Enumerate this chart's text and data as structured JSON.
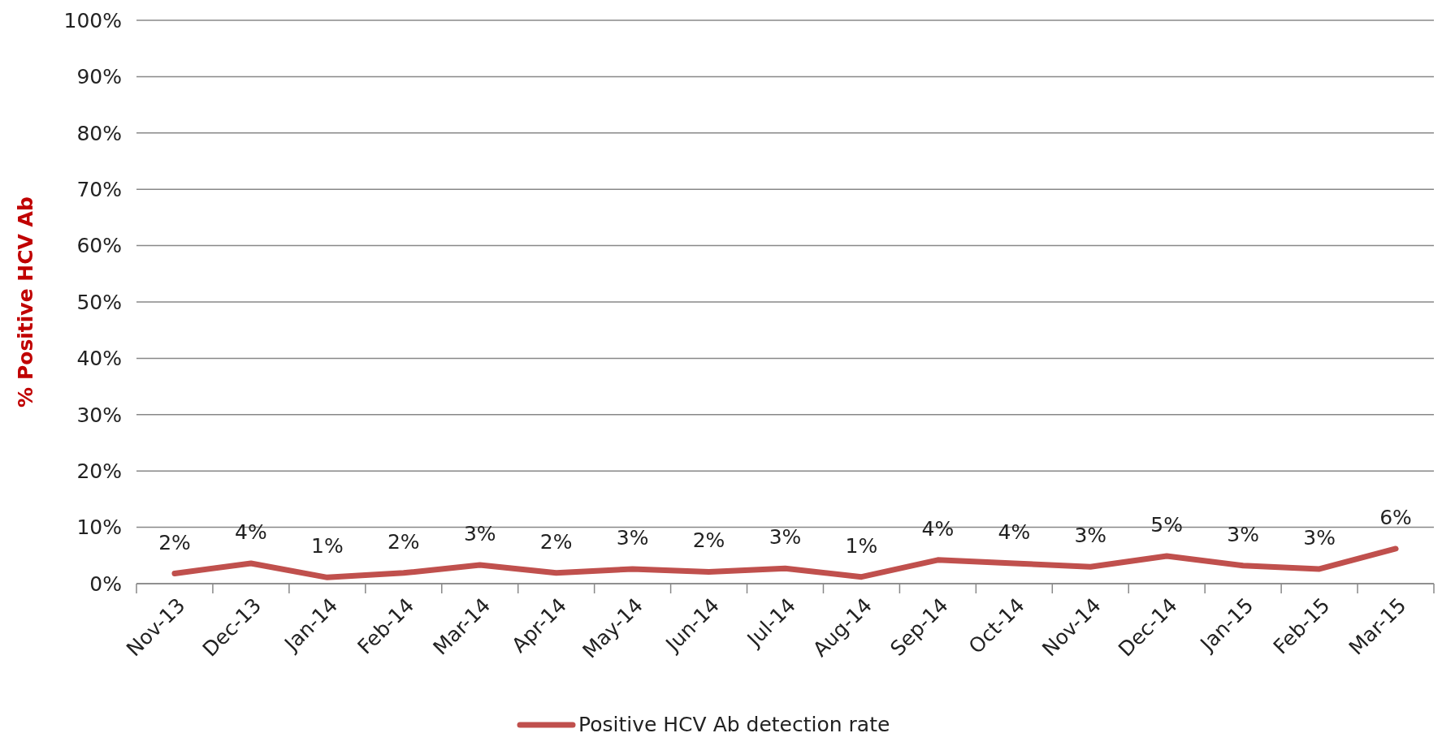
{
  "chart_data": {
    "type": "line",
    "ylabel": "% Positive HCV Ab",
    "categories": [
      "Nov-13",
      "Dec-13",
      "Jan-14",
      "Feb-14",
      "Mar-14",
      "Apr-14",
      "May-14",
      "Jun-14",
      "Jul-14",
      "Aug-14",
      "Sep-14",
      "Oct-14",
      "Nov-14",
      "Dec-14",
      "Jan-15",
      "Feb-15",
      "Mar-15"
    ],
    "series": [
      {
        "name": "Positive HCV Ab detection rate",
        "color": "#c0504d",
        "values": [
          1.8,
          3.6,
          1.1,
          1.9,
          3.3,
          1.9,
          2.6,
          2.1,
          2.7,
          1.2,
          4.2,
          3.6,
          3.0,
          4.9,
          3.2,
          2.6,
          6.2
        ],
        "value_labels": [
          "2%",
          "4%",
          "1%",
          "2%",
          "3%",
          "2%",
          "3%",
          "2%",
          "3%",
          "1%",
          "4%",
          "4%",
          "3%",
          "5%",
          "3%",
          "3%",
          "6%"
        ]
      }
    ],
    "ylim": [
      0,
      100
    ],
    "yticks": [
      {
        "value": 0,
        "label": "0%"
      },
      {
        "value": 10,
        "label": "10%"
      },
      {
        "value": 20,
        "label": "20%"
      },
      {
        "value": 30,
        "label": "30%"
      },
      {
        "value": 40,
        "label": "40%"
      },
      {
        "value": 50,
        "label": "50%"
      },
      {
        "value": 60,
        "label": "60%"
      },
      {
        "value": 70,
        "label": "70%"
      },
      {
        "value": 80,
        "label": "80%"
      },
      {
        "value": 90,
        "label": "90%"
      },
      {
        "value": 100,
        "label": "100%"
      }
    ],
    "grid": "y",
    "legend": "bottom",
    "marker": "none",
    "line_style": "solid"
  }
}
